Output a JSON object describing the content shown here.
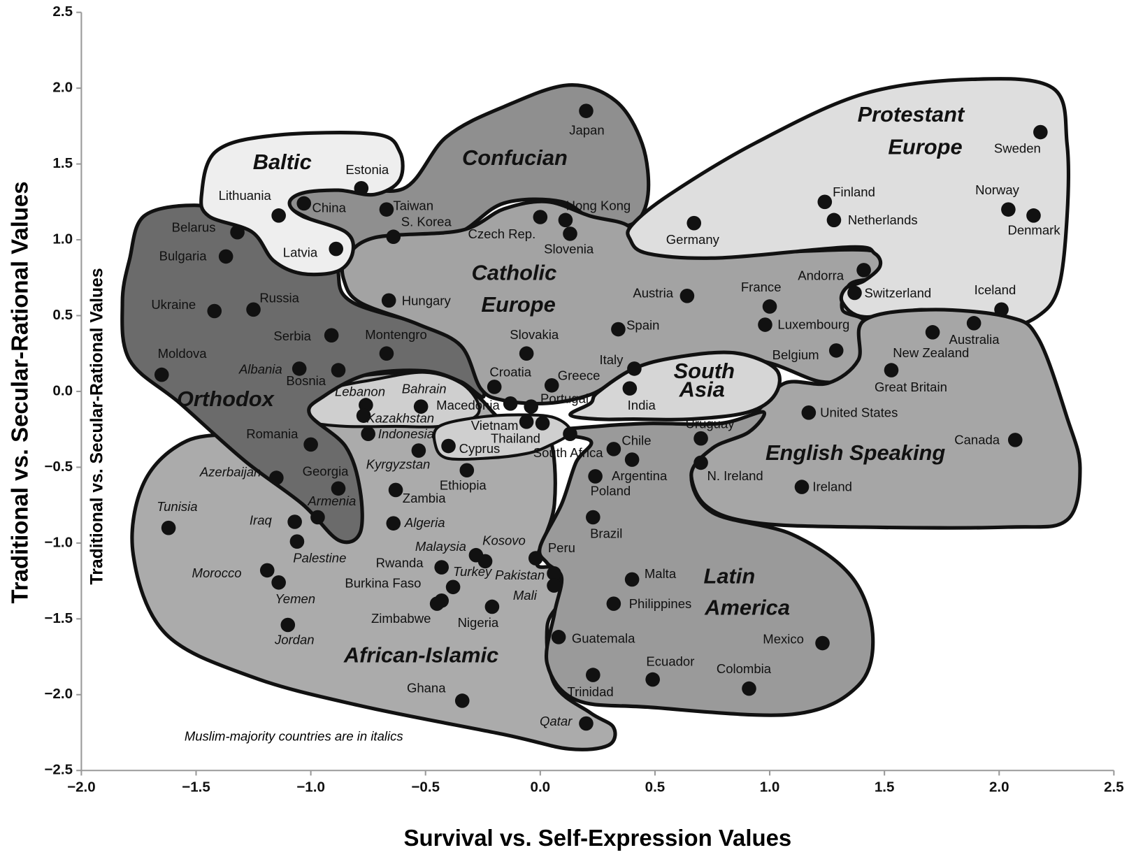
{
  "chart_data": {
    "type": "scatter",
    "x_label": "Survival vs. Self-Expression Values",
    "y_label": "Traditional vs. Secular-Rational Values",
    "y_label_secondary": "Traditional vs. Secular-Rational Values",
    "annotation": "Muslim-majority countries are in italics",
    "xlim": [
      -2.0,
      2.5
    ],
    "ylim": [
      -2.5,
      2.5
    ],
    "xticks": [
      {
        "value": -2.0,
        "label": "−2.0"
      },
      {
        "value": -1.5,
        "label": "−1.5"
      },
      {
        "value": -1.0,
        "label": "−1.0"
      },
      {
        "value": -0.5,
        "label": "−0.5"
      },
      {
        "value": 0.0,
        "label": "0.0"
      },
      0.5,
      {
        "value": 1.0,
        "label": "1.0"
      },
      1.5,
      {
        "value": 2.0,
        "label": "2.0"
      },
      2.5
    ],
    "yticks": [
      2.5,
      {
        "value": 2.0,
        "label": "2.0"
      },
      1.5,
      {
        "value": 1.0,
        "label": "1.0"
      },
      0.5,
      {
        "value": 0.0,
        "label": "0.0"
      },
      {
        "value": -0.5,
        "label": "−0.5"
      },
      {
        "value": -1.0,
        "label": "−1.0"
      },
      {
        "value": -1.5,
        "label": "−1.5"
      },
      {
        "value": -2.0,
        "label": "−2.0"
      },
      {
        "value": -2.5,
        "label": "−2.5"
      }
    ],
    "marker_color": "#111111",
    "regions": [
      {
        "lines": [
          "African-Islamic"
        ],
        "color": "#ababab"
      },
      {
        "lines": [
          "Orthodox"
        ],
        "color": "#6b6b6b"
      },
      {
        "lines": [
          "Confucian"
        ],
        "color": "#8f8f8f"
      },
      {
        "lines": [
          "Catholic",
          "Europe"
        ],
        "color": "#a3a3a3"
      },
      {
        "lines": [
          "Baltic"
        ],
        "color": "#eeeeee"
      },
      {
        "lines": [
          "Protestant",
          "Europe"
        ],
        "color": "#dedede"
      },
      {
        "lines": [
          "English Speaking"
        ],
        "color": "#a6a6a6"
      },
      {
        "lines": [
          "Latin",
          "America"
        ],
        "color": "#9a9a9a"
      },
      {
        "lines": [
          "South",
          "Asia"
        ],
        "color": "#d6d6d6"
      }
    ],
    "points": [
      {
        "label": "Japan",
        "x": 0.2,
        "y": 1.85,
        "italic": false
      },
      {
        "label": "Estonia",
        "x": -0.78,
        "y": 1.34,
        "italic": false
      },
      {
        "label": "Lithuania",
        "x": -1.14,
        "y": 1.16,
        "italic": false
      },
      {
        "label": "China",
        "x": -1.03,
        "y": 1.24,
        "italic": false
      },
      {
        "label": "Taiwan",
        "x": -0.67,
        "y": 1.2,
        "italic": false
      },
      {
        "label": "S. Korea",
        "x": -0.64,
        "y": 1.02,
        "italic": false
      },
      {
        "label": "Belarus",
        "x": -1.32,
        "y": 1.05,
        "italic": false
      },
      {
        "label": "Bulgaria",
        "x": -1.37,
        "y": 0.89,
        "italic": false
      },
      {
        "label": "Latvia",
        "x": -0.89,
        "y": 0.94,
        "italic": false
      },
      {
        "label": "Ukraine",
        "x": -1.42,
        "y": 0.53,
        "italic": false
      },
      {
        "label": "Russia",
        "x": -1.25,
        "y": 0.54,
        "italic": false
      },
      {
        "label": "Serbia",
        "x": -0.91,
        "y": 0.37,
        "italic": false
      },
      {
        "label": "Montengro",
        "x": -0.67,
        "y": 0.25,
        "italic": false
      },
      {
        "label": "Moldova",
        "x": -1.65,
        "y": 0.11,
        "italic": false
      },
      {
        "label": "Albania",
        "x": -1.05,
        "y": 0.15,
        "italic": true
      },
      {
        "label": "Bosnia",
        "x": -0.88,
        "y": 0.14,
        "italic": false
      },
      {
        "label": "Hungary",
        "x": -0.66,
        "y": 0.6,
        "italic": false
      },
      {
        "label": "Czech Rep.",
        "x": 0.0,
        "y": 1.15,
        "italic": false
      },
      {
        "label": "Hong Kong",
        "x": 0.11,
        "y": 1.13,
        "italic": false
      },
      {
        "label": "Slovenia",
        "x": 0.13,
        "y": 1.04,
        "italic": false
      },
      {
        "label": "Germany",
        "x": 0.67,
        "y": 1.11,
        "italic": false
      },
      {
        "label": "Finland",
        "x": 1.24,
        "y": 1.25,
        "italic": false
      },
      {
        "label": "Netherlands",
        "x": 1.28,
        "y": 1.13,
        "italic": false
      },
      {
        "label": "Norway",
        "x": 2.04,
        "y": 1.2,
        "italic": false
      },
      {
        "label": "Denmark",
        "x": 2.15,
        "y": 1.16,
        "italic": false
      },
      {
        "label": "Sweden",
        "x": 2.18,
        "y": 1.71,
        "italic": false
      },
      {
        "label": "Andorra",
        "x": 1.41,
        "y": 0.8,
        "italic": false
      },
      {
        "label": "Switzerland",
        "x": 1.37,
        "y": 0.65,
        "italic": false
      },
      {
        "label": "Iceland",
        "x": 2.01,
        "y": 0.54,
        "italic": false
      },
      {
        "label": "Austria",
        "x": 0.64,
        "y": 0.63,
        "italic": false
      },
      {
        "label": "France",
        "x": 1.0,
        "y": 0.56,
        "italic": false
      },
      {
        "label": "Luxembourg",
        "x": 0.98,
        "y": 0.44,
        "italic": false
      },
      {
        "label": "Belgium",
        "x": 1.29,
        "y": 0.27,
        "italic": false
      },
      {
        "label": "Australia",
        "x": 1.89,
        "y": 0.45,
        "italic": false
      },
      {
        "label": "New Zealand",
        "x": 1.71,
        "y": 0.39,
        "italic": false
      },
      {
        "label": "Great Britain",
        "x": 1.53,
        "y": 0.14,
        "italic": false
      },
      {
        "label": "United States",
        "x": 1.17,
        "y": -0.14,
        "italic": false
      },
      {
        "label": "Canada",
        "x": 2.07,
        "y": -0.32,
        "italic": false
      },
      {
        "label": "Ireland",
        "x": 1.14,
        "y": -0.63,
        "italic": false
      },
      {
        "label": "Spain",
        "x": 0.34,
        "y": 0.41,
        "italic": false
      },
      {
        "label": "Slovakia",
        "x": -0.06,
        "y": 0.25,
        "italic": false
      },
      {
        "label": "Italy",
        "x": 0.41,
        "y": 0.15,
        "italic": false
      },
      {
        "label": "India",
        "x": 0.39,
        "y": 0.02,
        "italic": false
      },
      {
        "label": "Croatia",
        "x": -0.2,
        "y": 0.03,
        "italic": false
      },
      {
        "label": "Greece",
        "x": 0.05,
        "y": 0.04,
        "italic": false
      },
      {
        "label": "Macedonia",
        "x": -0.13,
        "y": -0.08,
        "italic": false
      },
      {
        "label": "Portugal",
        "x": -0.04,
        "y": -0.1,
        "italic": false
      },
      {
        "label": "Vietnam",
        "x": -0.06,
        "y": -0.2,
        "italic": false
      },
      {
        "label": "Thailand",
        "x": 0.01,
        "y": -0.21,
        "italic": false
      },
      {
        "label": "Cyprus",
        "x": -0.4,
        "y": -0.36,
        "italic": false
      },
      {
        "label": "South Africa",
        "x": 0.13,
        "y": -0.28,
        "italic": false
      },
      {
        "label": "Chile",
        "x": 0.32,
        "y": -0.38,
        "italic": false
      },
      {
        "label": "Argentina",
        "x": 0.4,
        "y": -0.45,
        "italic": false
      },
      {
        "label": "Uruguay",
        "x": 0.7,
        "y": -0.31,
        "italic": false
      },
      {
        "label": "N. Ireland",
        "x": 0.7,
        "y": -0.47,
        "italic": false
      },
      {
        "label": "Poland",
        "x": 0.24,
        "y": -0.56,
        "italic": false
      },
      {
        "label": "Brazil",
        "x": 0.23,
        "y": -0.83,
        "italic": false
      },
      {
        "label": "Lebanon",
        "x": -0.76,
        "y": -0.09,
        "italic": true
      },
      {
        "label": "Kazakhstan",
        "x": -0.77,
        "y": -0.16,
        "italic": true
      },
      {
        "label": "Bahrain",
        "x": -0.52,
        "y": -0.1,
        "italic": true
      },
      {
        "label": "Indonesia",
        "x": -0.75,
        "y": -0.28,
        "italic": true
      },
      {
        "label": "Kyrgyzstan",
        "x": -0.53,
        "y": -0.39,
        "italic": true
      },
      {
        "label": "Romania",
        "x": -1.0,
        "y": -0.35,
        "italic": false
      },
      {
        "label": "Ethiopia",
        "x": -0.32,
        "y": -0.52,
        "italic": false
      },
      {
        "label": "Zambia",
        "x": -0.63,
        "y": -0.65,
        "italic": false
      },
      {
        "label": "Georgia",
        "x": -0.88,
        "y": -0.64,
        "italic": false
      },
      {
        "label": "Azerbaijan",
        "x": -1.15,
        "y": -0.57,
        "italic": true
      },
      {
        "label": "Armenia",
        "x": -0.97,
        "y": -0.83,
        "italic": true
      },
      {
        "label": "Algeria",
        "x": -0.64,
        "y": -0.87,
        "italic": true
      },
      {
        "label": "Iraq",
        "x": -1.07,
        "y": -0.86,
        "italic": true
      },
      {
        "label": "Palestine",
        "x": -1.06,
        "y": -0.99,
        "italic": true
      },
      {
        "label": "Tunisia",
        "x": -1.62,
        "y": -0.9,
        "italic": true
      },
      {
        "label": "Malaysia",
        "x": -0.28,
        "y": -1.08,
        "italic": true
      },
      {
        "label": "Kosovo",
        "x": -0.24,
        "y": -1.12,
        "italic": true
      },
      {
        "label": "Rwanda",
        "x": -0.43,
        "y": -1.16,
        "italic": false
      },
      {
        "label": "Turkey",
        "x": -0.38,
        "y": -1.29,
        "italic": true
      },
      {
        "label": "Burkina Faso",
        "x": -0.43,
        "y": -1.38,
        "italic": false
      },
      {
        "label": "Zimbabwe",
        "x": -0.45,
        "y": -1.4,
        "italic": false
      },
      {
        "label": "Nigeria",
        "x": -0.21,
        "y": -1.42,
        "italic": false
      },
      {
        "label": "Pakistan",
        "x": 0.06,
        "y": -1.2,
        "italic": true
      },
      {
        "label": "Mali",
        "x": 0.06,
        "y": -1.28,
        "italic": true
      },
      {
        "label": "Peru",
        "x": -0.02,
        "y": -1.1,
        "italic": false
      },
      {
        "label": "Morocco",
        "x": -1.19,
        "y": -1.18,
        "italic": true
      },
      {
        "label": "Yemen",
        "x": -1.14,
        "y": -1.26,
        "italic": true
      },
      {
        "label": "Jordan",
        "x": -1.1,
        "y": -1.54,
        "italic": true
      },
      {
        "label": "Malta",
        "x": 0.4,
        "y": -1.24,
        "italic": false
      },
      {
        "label": "Philippines",
        "x": 0.32,
        "y": -1.4,
        "italic": false
      },
      {
        "label": "Guatemala",
        "x": 0.08,
        "y": -1.62,
        "italic": false
      },
      {
        "label": "Mexico",
        "x": 1.23,
        "y": -1.66,
        "italic": false
      },
      {
        "label": "Ecuador",
        "x": 0.49,
        "y": -1.9,
        "italic": false
      },
      {
        "label": "Colombia",
        "x": 0.91,
        "y": -1.96,
        "italic": false
      },
      {
        "label": "Trinidad",
        "x": 0.23,
        "y": -1.87,
        "italic": false
      },
      {
        "label": "Ghana",
        "x": -0.34,
        "y": -2.04,
        "italic": false
      },
      {
        "label": "Qatar",
        "x": 0.2,
        "y": -2.19,
        "italic": true
      }
    ]
  }
}
